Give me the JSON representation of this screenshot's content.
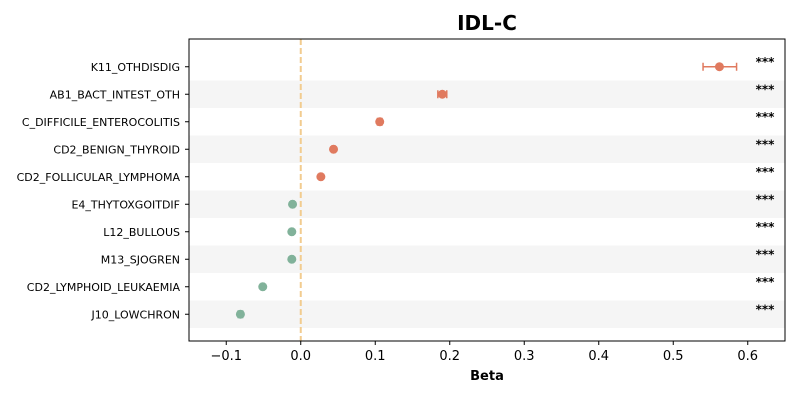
{
  "chart_data": {
    "type": "scatter",
    "title": "IDL-C",
    "xlabel": "Beta",
    "ylabel": "",
    "xlim": [
      -0.15,
      0.65
    ],
    "xticks": [
      "−0.1",
      "0.0",
      "0.1",
      "0.2",
      "0.3",
      "0.4",
      "0.5",
      "0.6"
    ],
    "xtick_values": [
      -0.1,
      0.0,
      0.1,
      0.2,
      0.3,
      0.4,
      0.5,
      0.6
    ],
    "reference_line": 0.0,
    "grid": false,
    "alternating_row_shading": true,
    "colors": {
      "positive": "#e07a5f",
      "negative": "#81b29a",
      "reference": "#f2cc8f",
      "band": "#f5f5f5"
    },
    "categories": [
      "K11_OTHDISDIG",
      "AB1_BACT_INTEST_OTH",
      "C_DIFFICILE_ENTEROCOLITIS",
      "CD2_BENIGN_THYROID",
      "CD2_FOLLICULAR_LYMPHOMA",
      "E4_THYTOXGOITDIF",
      "L12_BULLOUS",
      "M13_SJOGREN",
      "CD2_LYMPHOID_LEUKAEMIA",
      "J10_LOWCHRON"
    ],
    "beta": [
      0.562,
      0.19,
      0.106,
      0.044,
      0.027,
      -0.011,
      -0.012,
      -0.012,
      -0.051,
      -0.081
    ],
    "ci_low": [
      0.54,
      0.184,
      0.103,
      0.042,
      0.025,
      -0.013,
      -0.014,
      -0.014,
      -0.053,
      -0.084
    ],
    "ci_high": [
      0.585,
      0.196,
      0.109,
      0.046,
      0.029,
      -0.009,
      -0.01,
      -0.01,
      -0.049,
      -0.078
    ],
    "significance": [
      "***",
      "***",
      "***",
      "***",
      "***",
      "***",
      "***",
      "***",
      "***",
      "***"
    ]
  }
}
